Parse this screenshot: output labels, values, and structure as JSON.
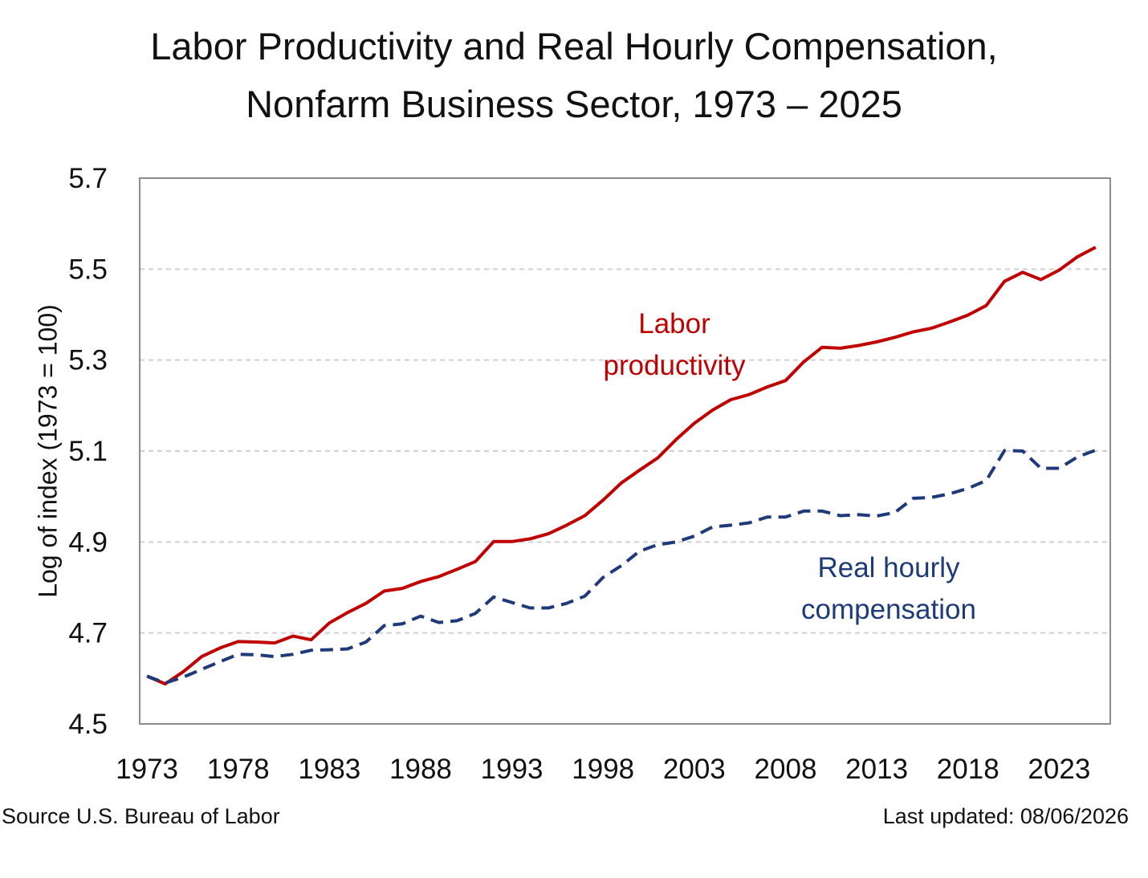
{
  "chart_data": {
    "type": "line",
    "title": [
      "Labor Productivity and Real Hourly Compensation,",
      "Nonfarm Business Sector, 1973 – 2025"
    ],
    "ylabel": "Log of index (1973 = 100)",
    "xlabel": "",
    "xlim": [
      1972.6,
      2025.8
    ],
    "ylim": [
      4.5,
      5.7
    ],
    "yticks": [
      "5.7",
      "5.5",
      "5.3",
      "5.1",
      "4.9",
      "4.7",
      "4.5"
    ],
    "ytick_values": [
      5.7,
      5.5,
      5.3,
      5.1,
      4.9,
      4.7,
      4.5
    ],
    "xticks": [
      "1973",
      "1978",
      "1983",
      "1988",
      "1993",
      "1998",
      "2003",
      "2008",
      "2013",
      "2018",
      "2023"
    ],
    "xtick_values": [
      1973,
      1978,
      1983,
      1988,
      1993,
      1998,
      2003,
      2008,
      2013,
      2018,
      2023
    ],
    "grid": "horizontal dashed",
    "x": [
      1973,
      1974,
      1975,
      1976,
      1977,
      1978,
      1979,
      1980,
      1981,
      1982,
      1983,
      1984,
      1985,
      1986,
      1987,
      1988,
      1989,
      1990,
      1991,
      1992,
      1993,
      1994,
      1995,
      1996,
      1997,
      1998,
      1999,
      2000,
      2001,
      2002,
      2003,
      2004,
      2005,
      2006,
      2007,
      2008,
      2009,
      2010,
      2011,
      2012,
      2013,
      2014,
      2015,
      2016,
      2017,
      2018,
      2019,
      2020,
      2021,
      2022,
      2023,
      2024,
      2025
    ],
    "series": [
      {
        "name": "Labor productivity",
        "label": [
          "Labor",
          "productivity"
        ],
        "color": "#c00000",
        "style": "solid",
        "values": [
          4.605,
          4.588,
          4.615,
          4.648,
          4.667,
          4.681,
          4.68,
          4.678,
          4.693,
          4.685,
          4.722,
          4.745,
          4.765,
          4.792,
          4.798,
          4.813,
          4.824,
          4.84,
          4.857,
          4.901,
          4.901,
          4.907,
          4.918,
          4.937,
          4.958,
          4.992,
          5.03,
          5.058,
          5.085,
          5.125,
          5.161,
          5.19,
          5.213,
          5.224,
          5.241,
          5.255,
          5.296,
          5.328,
          5.326,
          5.332,
          5.34,
          5.35,
          5.362,
          5.37,
          5.384,
          5.399,
          5.42,
          5.473,
          5.493,
          5.477,
          5.498,
          5.527,
          5.548
        ]
      },
      {
        "name": "Real hourly compensation",
        "label": [
          "Real hourly",
          "compensation"
        ],
        "color": "#1f3a7a",
        "style": "dashed",
        "values": [
          4.605,
          4.59,
          4.603,
          4.62,
          4.637,
          4.653,
          4.652,
          4.648,
          4.653,
          4.662,
          4.663,
          4.665,
          4.68,
          4.716,
          4.72,
          4.737,
          4.723,
          4.727,
          4.743,
          4.779,
          4.767,
          4.755,
          4.755,
          4.765,
          4.781,
          4.822,
          4.848,
          4.88,
          4.894,
          4.9,
          4.913,
          4.933,
          4.937,
          4.942,
          4.955,
          4.955,
          4.968,
          4.968,
          4.958,
          4.96,
          4.957,
          4.965,
          4.996,
          4.998,
          5.006,
          5.018,
          5.035,
          5.101,
          5.1,
          5.062,
          5.062,
          5.087,
          5.102
        ]
      }
    ]
  },
  "footer": {
    "source": "Source U.S. Bureau of Labor",
    "updated": "Last updated: 08/06/2026"
  }
}
